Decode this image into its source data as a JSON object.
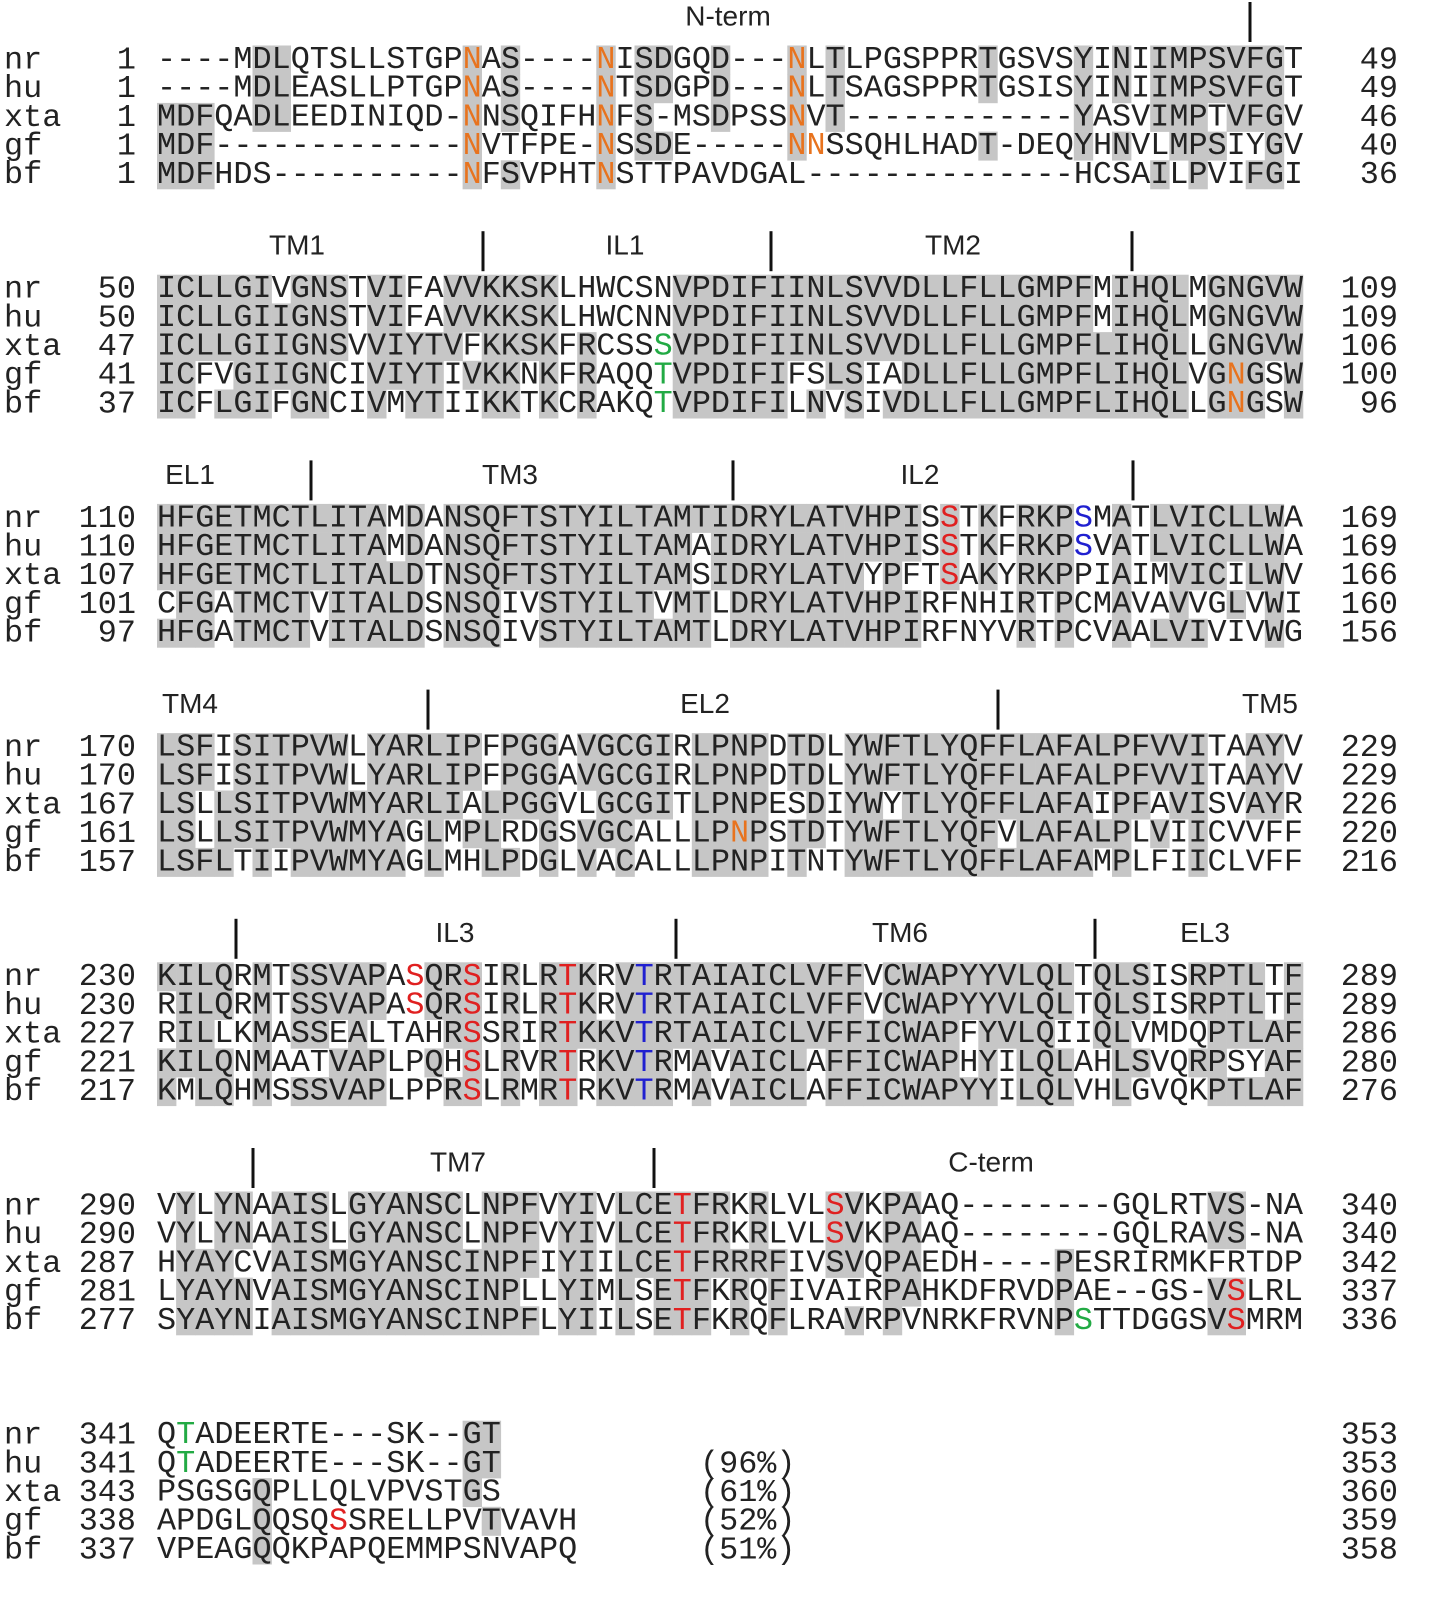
{
  "alignment": {
    "blocks": [
      {
        "regions": [
          "N-term"
        ],
        "rows": [
          {
            "name": "nr",
            "start": 1,
            "segments": [
              "----MDLQTSLLSTGP",
              {
                "text": "N",
                "color": "#e8731e"
              },
              "AS----",
              {
                "text": "N",
                "color": "#e8731e"
              },
              "ISDGQD---",
              {
                "text": "N",
                "color": "#e8731e"
              },
              "LTLPGSPPRTGSVSYINIIMPSVFGT"
            ],
            "end": 49
          },
          {
            "name": "hu",
            "start": 1,
            "segments": [
              "----MDLEASLLPTGP",
              {
                "text": "N",
                "color": "#e8731e"
              },
              "AS----",
              {
                "text": "N",
                "color": "#e8731e"
              },
              "TSDGPD---",
              {
                "text": "N",
                "color": "#e8731e"
              },
              "LTSAGSPPRTGSISYINIIMPSVFGT"
            ],
            "end": 49
          },
          {
            "name": "xta",
            "start": 1,
            "segments": [
              "MDFQADLEEDINIQD-",
              {
                "text": "N",
                "color": "#e8731e"
              },
              "NSQIFH",
              {
                "text": "N",
                "color": "#e8731e"
              },
              "FS-MSDPSS",
              {
                "text": "N",
                "color": "#e8731e"
              },
              "VT------------YASVIMPTVFGV"
            ],
            "end": 46
          },
          {
            "name": "gf",
            "start": 1,
            "segments": [
              "MDF-------------",
              {
                "text": "N",
                "color": "#e8731e"
              },
              "VTFPE-",
              {
                "text": "N",
                "color": "#e8731e"
              },
              "SSDE-----",
              {
                "text": "NN",
                "color": "#e8731e"
              },
              "SSQHLHADT-DEQYHNVLMPSIYGV"
            ],
            "end": 40
          },
          {
            "name": "bf",
            "start": 1,
            "segments": [
              "MDFHDS----------",
              {
                "text": "N",
                "color": "#e8731e"
              },
              "FSVPHT",
              {
                "text": "N",
                "color": "#e8731e"
              },
              "STTPAVDGAL--------------HCSAILPVIFGI"
            ],
            "end": 36
          }
        ]
      },
      {
        "regions": [
          "TM1",
          "IL1",
          "TM2"
        ],
        "rows": [
          {
            "name": "nr",
            "start": 50,
            "segments": [
              "ICLLGIVGNSTVIFAVVKKSKLHWCSNVPDIFIINLSVVDLLFLLGMPFMIHQLMGNGVW"
            ],
            "end": 109
          },
          {
            "name": "hu",
            "start": 50,
            "segments": [
              "ICLLGIIGNSTVIFAVVKKSKLHWCNNVPDIFIINLSVVDLLFLLGMPFMIHQLMGNGVW"
            ],
            "end": 109
          },
          {
            "name": "xta",
            "start": 47,
            "segments": [
              "ICLLGIIGNSVVIYTVFKKSKFRCSS",
              {
                "text": "S",
                "color": "#22aa44"
              },
              "VPDIFIINLSVVDLLFLLGMPFLIHQLLGNGVW"
            ],
            "end": 106
          },
          {
            "name": "gf",
            "start": 41,
            "segments": [
              "ICFVGIIGNCIVIYTIVKKNKFRAQQ",
              {
                "text": "T",
                "color": "#22aa44"
              },
              "VPDIFIFSLSIADLLFLLGMPFLIHQLVG",
              {
                "text": "N",
                "color": "#e8731e"
              },
              "GSW"
            ],
            "end": 100
          },
          {
            "name": "bf",
            "start": 37,
            "segments": [
              "ICFLGIFGNCIVMYTIIKKTKCRAKQ",
              {
                "text": "T",
                "color": "#22aa44"
              },
              "VPDIFILNVSIVDLLFLLGMPFLIHQLLG",
              {
                "text": "N",
                "color": "#e8731e"
              },
              "GSW"
            ],
            "end": 96
          }
        ]
      },
      {
        "regions": [
          "EL1",
          "TM3",
          "IL2"
        ],
        "rows": [
          {
            "name": "nr",
            "start": 110,
            "segments": [
              "HFGETMCTLITAMDANSQFTSTYILTAMTIDRYLATVHPIS",
              {
                "text": "S",
                "color": "#e02020"
              },
              "TKFRKP",
              {
                "text": "S",
                "color": "#2020d0"
              },
              "MATLVICLLWA"
            ],
            "end": 169
          },
          {
            "name": "hu",
            "start": 110,
            "segments": [
              "HFGETMCTLITAMDANSQFTSTYILTAMAIDRYLATVHPIS",
              {
                "text": "S",
                "color": "#e02020"
              },
              "TKFRKP",
              {
                "text": "S",
                "color": "#2020d0"
              },
              "VATLVICLLWA"
            ],
            "end": 169
          },
          {
            "name": "xta",
            "start": 107,
            "segments": [
              "HFGETMCTLITALDTNSQFTSTYILTAMSIDRYLATVYPFT",
              {
                "text": "S",
                "color": "#e02020"
              },
              "AKYRKPPIAIMVICILWV"
            ],
            "end": 166
          },
          {
            "name": "gf",
            "start": 101,
            "segments": [
              "CFGATMCTVITALDSNSQIVSTYILTVMTLDRYLATVHPIRFNHIRTPCMAVAVVGLVWI"
            ],
            "end": 160
          },
          {
            "name": "bf",
            "start": 97,
            "segments": [
              "HFGATMCTVITALDSNSQIVSTYILTAMTLDRYLATVHPIRFNYVRTPCVAALVIVIVWG"
            ],
            "end": 156
          }
        ]
      },
      {
        "regions": [
          "TM4",
          "EL2",
          "TM5"
        ],
        "rows": [
          {
            "name": "nr",
            "start": 170,
            "segments": [
              "LSFISITPVWLYARLIPFPGGAVGCGIRLPNPDTDLYWFTLYQFFLAFALPFVVITAAYV"
            ],
            "end": 229
          },
          {
            "name": "hu",
            "start": 170,
            "segments": [
              "LSFISITPVWLYARLIPFPGGAVGCGIRLPNPDTDLYWFTLYQFFLAFALPFVVITAAYV"
            ],
            "end": 229
          },
          {
            "name": "xta",
            "start": 167,
            "segments": [
              "LSLLSITPVWMYARLIALPGGVLGCGITLPNPESDIYWYTLYQFFLAFAIPFAVISVAYR"
            ],
            "end": 226
          },
          {
            "name": "gf",
            "start": 161,
            "segments": [
              "LSLLSITPVWMYAGLMPLRDGSVGCALLLP",
              {
                "text": "N",
                "color": "#e8731e"
              },
              "PSTDTYWFTLYQFVLAFALPLVIICVVFF"
            ],
            "end": 220
          },
          {
            "name": "bf",
            "start": 157,
            "segments": [
              "LSFLTIIPVWMYAGLMHLPDGLVACALLLPNPITNTYWFTLYQFFLAFAMPLFIICLVFF"
            ],
            "end": 216
          }
        ]
      },
      {
        "regions": [
          "IL3",
          "TM6",
          "EL3"
        ],
        "rows": [
          {
            "name": "nr",
            "start": 230,
            "segments": [
              "KILQRMTSSVAPA",
              {
                "text": "S",
                "color": "#e02020"
              },
              "QR",
              {
                "text": "S",
                "color": "#e02020"
              },
              "IRLR",
              {
                "text": "T",
                "color": "#e02020"
              },
              "KRV",
              {
                "text": "T",
                "color": "#2020d0"
              },
              "RTAIAICLVFFVCWAPYYVLQLTQLSISRPTLTF"
            ],
            "end": 289
          },
          {
            "name": "hu",
            "start": 230,
            "segments": [
              "RILQRMTSSVAPA",
              {
                "text": "S",
                "color": "#e02020"
              },
              "QR",
              {
                "text": "S",
                "color": "#e02020"
              },
              "IRLR",
              {
                "text": "T",
                "color": "#e02020"
              },
              "KRV",
              {
                "text": "T",
                "color": "#2020d0"
              },
              "RTAIAICLVFFVCWAPYYVLQLTQLSISRPTLTF"
            ],
            "end": 289
          },
          {
            "name": "xta",
            "start": 227,
            "segments": [
              "RILLKMASSEALTAHR",
              {
                "text": "S",
                "color": "#e02020"
              },
              "SRIR",
              {
                "text": "T",
                "color": "#e02020"
              },
              "KKV",
              {
                "text": "T",
                "color": "#2020d0"
              },
              "RTAIAICLVFFICWAPFYVLQIIQLVMDQPTLAF"
            ],
            "end": 286
          },
          {
            "name": "gf",
            "start": 221,
            "segments": [
              "KILQNMAATVAPLPQH",
              {
                "text": "S",
                "color": "#e02020"
              },
              "LRVR",
              {
                "text": "T",
                "color": "#e02020"
              },
              "RKV",
              {
                "text": "T",
                "color": "#2020d0"
              },
              "RMAVAICLAFFICWAPHYILQLAHLSVQRPSYAF"
            ],
            "end": 280
          },
          {
            "name": "bf",
            "start": 217,
            "segments": [
              "KMLQHMSSSVAPLPPR",
              {
                "text": "S",
                "color": "#e02020"
              },
              "LRMR",
              {
                "text": "T",
                "color": "#e02020"
              },
              "RKV",
              {
                "text": "T",
                "color": "#2020d0"
              },
              "RMAVAICLAFFICWAPYYILQLVHLGVQKPTLAF"
            ],
            "end": 276
          }
        ]
      },
      {
        "regions": [
          "TM7",
          "C-term"
        ],
        "rows": [
          {
            "name": "nr",
            "start": 290,
            "segments": [
              "VYLYNAAISLGYANSCLNPFVYIVLCE",
              {
                "text": "T",
                "color": "#e02020"
              },
              "FRKRLVL",
              {
                "text": "S",
                "color": "#e02020"
              },
              "VKPAAQ--------GQLRTVS-NA"
            ],
            "end": 340
          },
          {
            "name": "hu",
            "start": 290,
            "segments": [
              "VYLYNAAISLGYANSCLNPFVYIVLCE",
              {
                "text": "T",
                "color": "#e02020"
              },
              "FRKRLVL",
              {
                "text": "S",
                "color": "#e02020"
              },
              "VKPAAQ--------GQLRAVS-NA"
            ],
            "end": 340
          },
          {
            "name": "xta",
            "start": 287,
            "segments": [
              "HYAYCVAISMGYANSCINPFIYIILCE",
              {
                "text": "T",
                "color": "#e02020"
              },
              "FRRRFIVSVQPAEDH----PESRIRMKFRTDP"
            ],
            "end": 342
          },
          {
            "name": "gf",
            "start": 281,
            "segments": [
              "LYAYNVAISMGYANSCINPLLYIMLSE",
              {
                "text": "T",
                "color": "#e02020"
              },
              "FKRQFIVAIRPAHKDFRVDPAE--GS-V",
              {
                "text": "S",
                "color": "#e02020"
              },
              "LRL"
            ],
            "end": 337
          },
          {
            "name": "bf",
            "start": 277,
            "segments": [
              "SYAYNIAISMGYANSCINPFLYIILSE",
              {
                "text": "T",
                "color": "#e02020"
              },
              "FKRQFLRAVRPVNRKFRVNP",
              {
                "text": "S",
                "color": "#22aa44"
              },
              "TTDGGSV",
              {
                "text": "S",
                "color": "#e02020"
              },
              "MRM"
            ],
            "end": 336
          }
        ]
      },
      {
        "regions": [],
        "rows": [
          {
            "name": "nr",
            "start": 341,
            "segments": [
              "Q",
              {
                "text": "T",
                "color": "#22aa44"
              },
              "ADEERTE---SK--GT"
            ],
            "end": 353
          },
          {
            "name": "hu",
            "start": 341,
            "segments": [
              "Q",
              {
                "text": "T",
                "color": "#22aa44"
              },
              "ADEERTE---SK--GT"
            ],
            "end": 353,
            "identity": "(96%)"
          },
          {
            "name": "xta",
            "start": 343,
            "segments": [
              "PSGSGQPLLQLVPVSTGS"
            ],
            "end": 360,
            "identity": "(61%)"
          },
          {
            "name": "gf",
            "start": 338,
            "segments": [
              "APDGLQQSQ",
              {
                "text": "S",
                "color": "#e02020"
              },
              "SRELLPVTVAVH"
            ],
            "end": 359,
            "identity": "(52%)"
          },
          {
            "name": "bf",
            "start": 337,
            "segments": [
              "VPEAGQQKPAPQEMMPSNVAPQ"
            ],
            "end": 358,
            "identity": "(51%)"
          }
        ]
      }
    ]
  }
}
